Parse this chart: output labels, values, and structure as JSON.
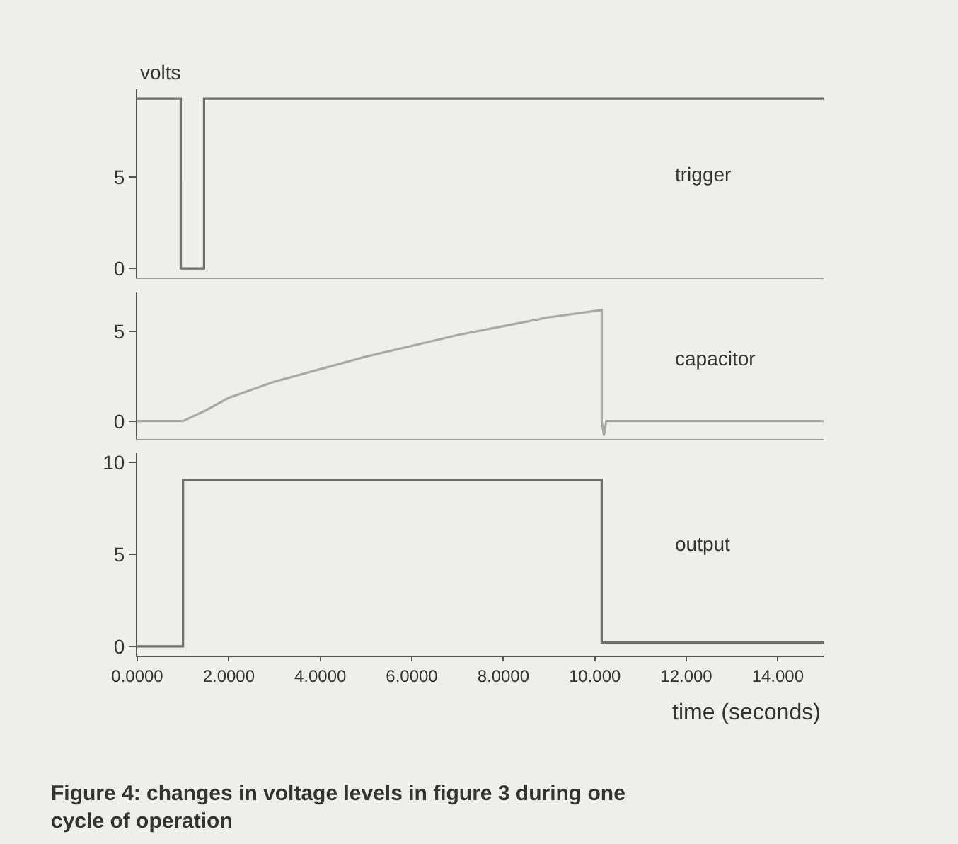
{
  "chart_data": [
    {
      "type": "line",
      "ylabel": "volts",
      "x": [
        0,
        0.95,
        0.95,
        1.46,
        1.46,
        15
      ],
      "series": [
        {
          "name": "trigger",
          "color": "#6e6e6e",
          "values": [
            9.3,
            9.3,
            0,
            0,
            9.3,
            9.3
          ]
        }
      ],
      "xlim": [
        0,
        15
      ],
      "ylim": [
        -0.5,
        9.8
      ],
      "yticks": [
        0,
        5
      ],
      "tick_labels": "y",
      "legend": false,
      "grid": false
    },
    {
      "type": "line",
      "x": [
        0,
        1.0,
        1.5,
        2,
        3,
        4,
        5,
        6,
        7,
        8,
        9,
        10.15,
        10.15,
        10.2,
        10.25,
        15
      ],
      "series": [
        {
          "name": "capacitor",
          "color": "#a8a8a8",
          "values": [
            0,
            0,
            0.6,
            1.3,
            2.2,
            2.9,
            3.6,
            4.2,
            4.8,
            5.3,
            5.8,
            6.2,
            0,
            -0.8,
            0,
            0
          ]
        }
      ],
      "xlim": [
        0,
        15
      ],
      "ylim": [
        -1,
        7.2
      ],
      "yticks": [
        0,
        5
      ],
      "tick_labels": "y",
      "legend": false,
      "grid": false
    },
    {
      "type": "line",
      "xlabel": "time (seconds)",
      "x": [
        0,
        1.0,
        1.0,
        10.15,
        10.15,
        15
      ],
      "series": [
        {
          "name": "output",
          "color": "#6e6e6e",
          "values": [
            0,
            0,
            9.05,
            9.05,
            0.2,
            0.2
          ]
        }
      ],
      "xlim": [
        0,
        15
      ],
      "ylim": [
        -0.5,
        10.5
      ],
      "yticks": [
        0,
        5,
        10
      ],
      "xticks": [
        {
          "value": 0,
          "label": "0.0000"
        },
        {
          "value": 2,
          "label": "2.0000"
        },
        {
          "value": 4,
          "label": "4.0000"
        },
        {
          "value": 6,
          "label": "6.0000"
        },
        {
          "value": 8,
          "label": "8.0000"
        },
        {
          "value": 10,
          "label": "10.000"
        },
        {
          "value": 12,
          "label": "12.000"
        },
        {
          "value": 14,
          "label": "14.000"
        }
      ],
      "annotations": [
        "Figure 4: changes in voltage levels in figure 3 during one cycle of operation"
      ],
      "legend": false,
      "grid": false
    }
  ]
}
